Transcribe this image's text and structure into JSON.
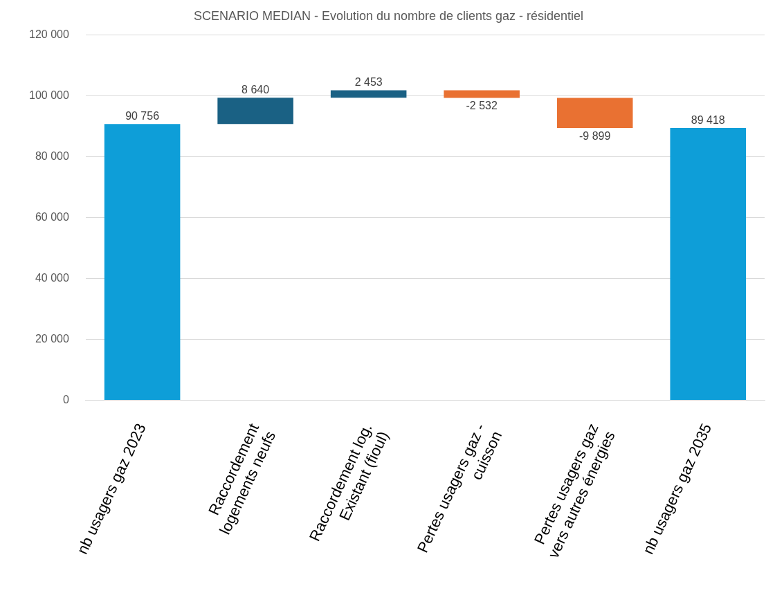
{
  "chart_data": {
    "type": "bar",
    "title": "SCENARIO MEDIAN - Evolution du nombre de clients gaz - résidentiel",
    "categories": [
      "nb usagers gaz 2023",
      "Raccordement logements neufs",
      "Raccordement log. Existant (fioul)",
      "Pertes usagers gaz - cuisson",
      "Pertes usagers gaz vers autres énergies",
      "nb usagers gaz 2035"
    ],
    "values": [
      90756,
      8640,
      2453,
      -2532,
      -9899,
      89418
    ],
    "base": [
      0,
      90756,
      99396,
      101849,
      99317,
      0
    ],
    "colors": [
      "#0e9ed8",
      "#1a6184",
      "#1a6184",
      "#e97132",
      "#e97132",
      "#0e9ed8"
    ],
    "value_labels": [
      "90 756",
      "8 640",
      "2 453",
      "-2 532",
      "-9 899",
      "89 418"
    ],
    "ylim": [
      0,
      120000
    ],
    "yticks": [
      {
        "value": 0,
        "label": "0"
      },
      {
        "value": 20000,
        "label": "20 000"
      },
      {
        "value": 40000,
        "label": "40 000"
      },
      {
        "value": 60000,
        "label": "60 000"
      },
      {
        "value": 80000,
        "label": "80 000"
      },
      {
        "value": 100000,
        "label": "100 000"
      },
      {
        "value": 120000,
        "label": "120 000"
      }
    ],
    "grid": "y",
    "legend": false
  }
}
